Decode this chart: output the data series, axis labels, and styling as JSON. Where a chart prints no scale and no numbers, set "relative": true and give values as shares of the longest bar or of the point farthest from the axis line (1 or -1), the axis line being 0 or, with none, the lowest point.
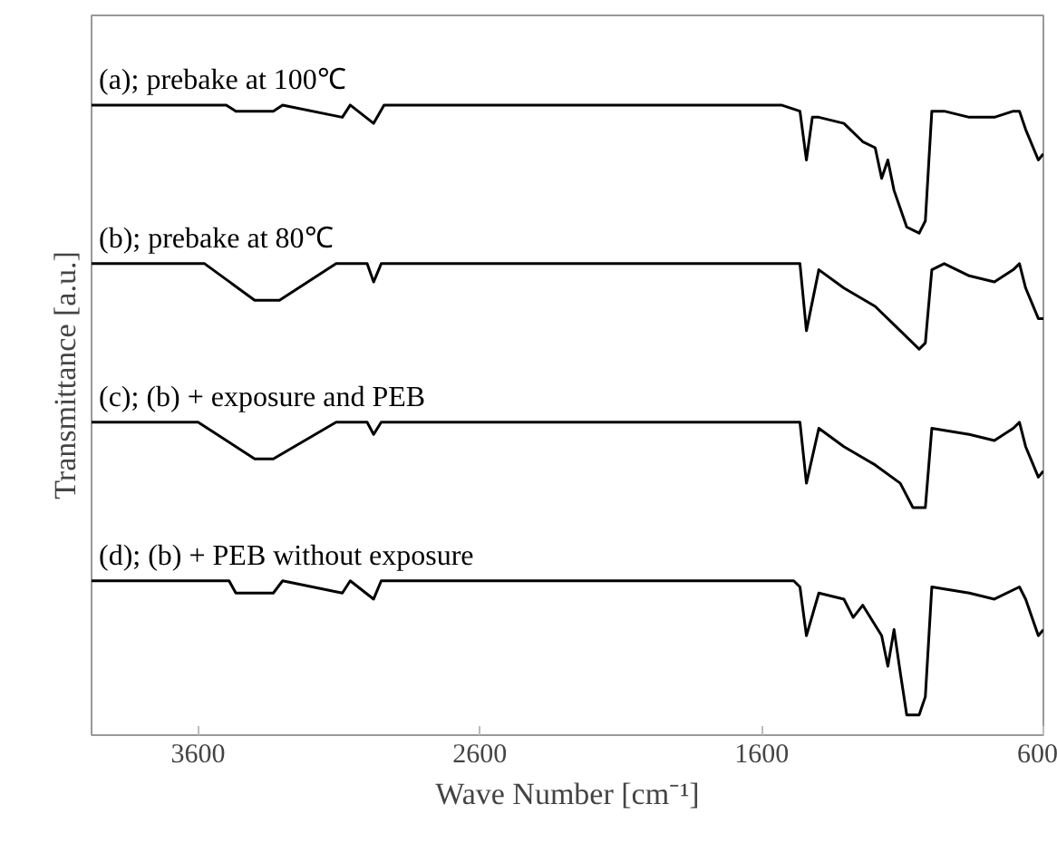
{
  "chart_data": {
    "type": "line",
    "relative": true,
    "xlabel": "Wave Number [cm⁻¹]",
    "ylabel": "Transmittance [a.u.]",
    "xlim": [
      3978,
      600
    ],
    "xticks": [
      3600,
      2600,
      1600,
      600
    ],
    "grid": false,
    "tick_labels": "x",
    "series": [
      {
        "name": "(a); prebake  at 100℃",
        "color": "#000000",
        "x": [
          3978,
          3500,
          3466,
          3333,
          3300,
          3088,
          3060,
          2977,
          2940,
          1530,
          1464,
          1441,
          1420,
          1397,
          1308,
          1241,
          1197,
          1174,
          1152,
          1130,
          1085,
          1041,
          1019,
          996,
          952,
          863,
          774,
          707,
          685,
          663,
          618,
          600
        ],
        "values": [
          1.0,
          1.0,
          0.99,
          0.99,
          1.0,
          0.98,
          1.0,
          0.97,
          1.0,
          1.0,
          0.99,
          0.91,
          0.98,
          0.98,
          0.97,
          0.94,
          0.93,
          0.88,
          0.91,
          0.86,
          0.8,
          0.79,
          0.81,
          0.99,
          0.99,
          0.98,
          0.98,
          0.99,
          0.99,
          0.96,
          0.91,
          0.92
        ]
      },
      {
        "name": "(b); prebake  at 80℃",
        "color": "#000000",
        "x": [
          3978,
          3577,
          3399,
          3311,
          3110,
          3000,
          2977,
          2950,
          1486,
          1464,
          1441,
          1397,
          1308,
          1197,
          1108,
          1041,
          1019,
          996,
          952,
          863,
          774,
          707,
          685,
          663,
          618,
          600
        ],
        "values": [
          0.74,
          0.74,
          0.68,
          0.68,
          0.74,
          0.74,
          0.71,
          0.74,
          0.74,
          0.74,
          0.63,
          0.73,
          0.7,
          0.67,
          0.63,
          0.6,
          0.61,
          0.73,
          0.74,
          0.72,
          0.71,
          0.73,
          0.74,
          0.7,
          0.65,
          0.65
        ]
      },
      {
        "name": "(c); (b) + exposure and PEB",
        "color": "#000000",
        "x": [
          3978,
          3600,
          3399,
          3333,
          3110,
          3000,
          2977,
          2950,
          1486,
          1464,
          1441,
          1397,
          1308,
          1197,
          1108,
          1063,
          1019,
          996,
          863,
          774,
          707,
          685,
          663,
          618,
          600
        ],
        "values": [
          0.48,
          0.48,
          0.42,
          0.42,
          0.48,
          0.48,
          0.46,
          0.48,
          0.48,
          0.48,
          0.38,
          0.47,
          0.44,
          0.41,
          0.38,
          0.34,
          0.34,
          0.47,
          0.46,
          0.45,
          0.47,
          0.48,
          0.44,
          0.39,
          0.4
        ]
      },
      {
        "name": "(d); (b) + PEB  without exposure",
        "color": "#000000",
        "x": [
          3978,
          3490,
          3466,
          3333,
          3300,
          3088,
          3060,
          2977,
          2950,
          1486,
          1464,
          1441,
          1397,
          1308,
          1275,
          1241,
          1174,
          1152,
          1130,
          1108,
          1085,
          1041,
          1019,
          996,
          863,
          774,
          685,
          663,
          618,
          600
        ],
        "values": [
          0.22,
          0.22,
          0.2,
          0.2,
          0.22,
          0.2,
          0.22,
          0.19,
          0.22,
          0.22,
          0.21,
          0.13,
          0.2,
          0.19,
          0.16,
          0.18,
          0.13,
          0.08,
          0.14,
          0.07,
          0.0,
          0.0,
          0.03,
          0.21,
          0.2,
          0.19,
          0.21,
          0.19,
          0.13,
          0.14
        ]
      }
    ]
  }
}
